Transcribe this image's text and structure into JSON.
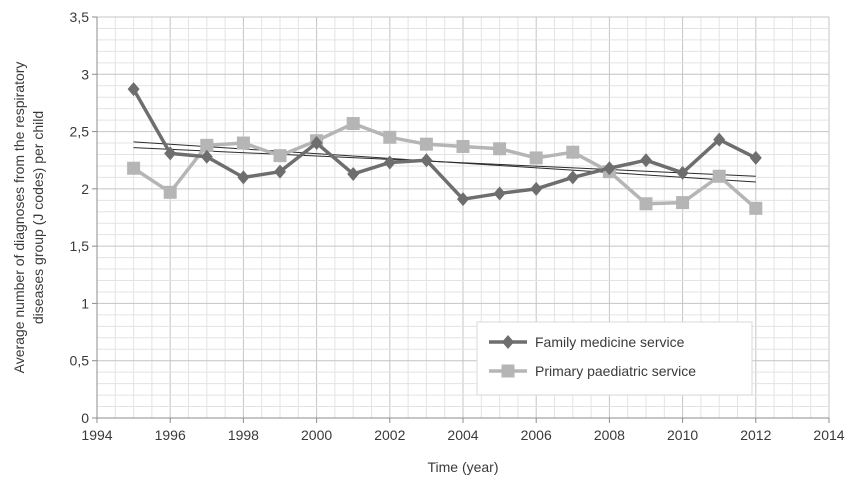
{
  "chart_data": {
    "type": "line",
    "xlabel": "Time (year)",
    "ylabel_lines": [
      "Average number of diagnoses from the respiratory",
      "diseases group (J codes) per child"
    ],
    "xlim": [
      1994,
      2014
    ],
    "ylim": [
      0,
      3.5
    ],
    "x_ticks": [
      "1994",
      "1996",
      "1998",
      "2000",
      "2002",
      "2004",
      "2006",
      "2008",
      "2010",
      "2012",
      "2014"
    ],
    "x_tick_values": [
      1994,
      1996,
      1998,
      2000,
      2002,
      2004,
      2006,
      2008,
      2010,
      2012,
      2014
    ],
    "y_ticks": [
      "0",
      "0,5",
      "1",
      "1,5",
      "2",
      "2,5",
      "3",
      "3,5"
    ],
    "y_tick_values": [
      0,
      0.5,
      1,
      1.5,
      2,
      2.5,
      3,
      3.5
    ],
    "grid": true,
    "legend_position": "bottom-right",
    "series": [
      {
        "name": "Family medicine service",
        "marker": "diamond",
        "color": "#6e6e6e",
        "x": [
          1995,
          1996,
          1997,
          1998,
          1999,
          2000,
          2001,
          2002,
          2003,
          2004,
          2005,
          2006,
          2007,
          2008,
          2009,
          2010,
          2011,
          2012
        ],
        "values": [
          2.87,
          2.31,
          2.28,
          2.1,
          2.15,
          2.4,
          2.13,
          2.23,
          2.25,
          1.91,
          1.96,
          2.0,
          2.1,
          2.18,
          2.25,
          2.14,
          2.43,
          2.27
        ]
      },
      {
        "name": "Primary paediatric service",
        "marker": "square",
        "color": "#b5b5b5",
        "x": [
          1995,
          1996,
          1997,
          1998,
          1999,
          2000,
          2001,
          2002,
          2003,
          2004,
          2005,
          2006,
          2007,
          2008,
          2009,
          2010,
          2011,
          2012
        ],
        "values": [
          2.18,
          1.97,
          2.38,
          2.4,
          2.29,
          2.42,
          2.57,
          2.45,
          2.39,
          2.37,
          2.35,
          2.27,
          2.32,
          2.15,
          1.87,
          1.88,
          2.11,
          1.83
        ]
      }
    ],
    "trendlines": [
      {
        "series": "Family medicine service",
        "x": [
          1995,
          2012
        ],
        "values": [
          2.36,
          2.11
        ]
      },
      {
        "series": "Primary paediatric service",
        "x": [
          1995,
          2012
        ],
        "values": [
          2.41,
          2.06
        ]
      }
    ]
  }
}
